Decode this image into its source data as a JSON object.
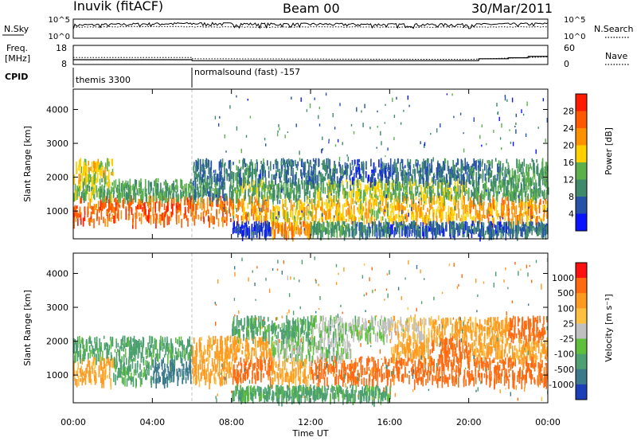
{
  "header": {
    "station": "Inuvik (fitACF)",
    "beam": "Beam 00",
    "date": "30/Mar/2011"
  },
  "top_panels": {
    "nsky_label": "N.Sky",
    "nsky_ticks": [
      "10^5",
      "10^0"
    ],
    "nsearch_label": "N.Search",
    "nsearch_ticks": [
      "10^5",
      "10^0"
    ],
    "freq_label_line1": "Freq.",
    "freq_label_line2": "[MHz]",
    "freq_ticks": [
      "18",
      "8"
    ],
    "nave_label": "Nave",
    "nave_ticks": [
      "60",
      "0"
    ],
    "cpid_label": "CPID",
    "cpid_segments": [
      {
        "label": "themis 3300",
        "start_hour": 0,
        "end_hour": 6
      },
      {
        "label": "normalsound (fast) -157",
        "start_hour": 6,
        "end_hour": 24
      }
    ]
  },
  "xaxis": {
    "label": "Time UT",
    "ticks": [
      "00:00",
      "04:00",
      "08:00",
      "12:00",
      "16:00",
      "20:00",
      "00:00"
    ]
  },
  "power_panel": {
    "ylabel": "Slant Range [km]",
    "yticks": [
      "1000",
      "2000",
      "3000",
      "4000"
    ],
    "colorbar_label": "Power [dB]",
    "colorbar_ticks": [
      "4",
      "8",
      "12",
      "16",
      "20",
      "24",
      "28"
    ],
    "colors": [
      "#0a14ff",
      "#2652a8",
      "#3f8a6a",
      "#5cb04c",
      "#ffd000",
      "#ff9000",
      "#ff5a00",
      "#ff1a00"
    ]
  },
  "velocity_panel": {
    "ylabel": "Slant Range [km]",
    "yticks": [
      "1000",
      "2000",
      "3000",
      "4000"
    ],
    "colorbar_label": "Velocity [m s⁻¹]",
    "colorbar_ticks": [
      "1000",
      "500",
      "100",
      "25",
      "-25",
      "-100",
      "-500",
      "-1000"
    ],
    "colors": [
      "#1a3fb8",
      "#3a7a8a",
      "#4da070",
      "#5ec03a",
      "#c0c0c0",
      "#ffc040",
      "#ff9a20",
      "#ff6a10",
      "#ff1010"
    ]
  },
  "chart_data": [
    {
      "type": "line",
      "title": "N.Sky / N.Search",
      "x_unit": "hour UT",
      "xlim": [
        0,
        24
      ],
      "series": [
        {
          "name": "N.Sky",
          "x": [
            0,
            2,
            4,
            6,
            8,
            10,
            12,
            14,
            16,
            18,
            20,
            22,
            24
          ],
          "y": [
            2000,
            3000,
            5000,
            6000,
            5000,
            4000,
            4000,
            3500,
            3000,
            3000,
            3000,
            4000,
            5000
          ]
        },
        {
          "name": "N.Search",
          "x": [
            0,
            2,
            4,
            6,
            8,
            10,
            12,
            14,
            16,
            18,
            20,
            22,
            24
          ],
          "y": [
            800,
            1000,
            1200,
            1000,
            900,
            800,
            900,
            900,
            800,
            800,
            800,
            900,
            1000
          ]
        }
      ]
    },
    {
      "type": "line",
      "title": "Freq. / Nave",
      "x_unit": "hour UT",
      "xlim": [
        0,
        24
      ],
      "series": [
        {
          "name": "Freq. [MHz]",
          "x": [
            0,
            6,
            6.01,
            20.5,
            20.51,
            22,
            22.01,
            23,
            23.01,
            24
          ],
          "y": [
            10.5,
            10.5,
            10.0,
            10.0,
            11.0,
            11.0,
            11.5,
            11.5,
            12.2,
            12.2
          ]
        },
        {
          "name": "Nave",
          "x": [
            0,
            6,
            6.01,
            20,
            22,
            24
          ],
          "y": [
            22,
            22,
            18,
            16,
            20,
            24
          ]
        }
      ]
    },
    {
      "type": "heatmap",
      "title": "Power [dB]",
      "xlabel": "Time UT",
      "ylabel": "Slant Range [km]",
      "xlim": [
        0,
        24
      ],
      "ylim": [
        180,
        4600
      ],
      "x_hours": [
        0,
        2,
        4,
        6,
        8,
        10,
        12,
        14,
        16,
        18,
        20,
        22
      ],
      "bands": [
        {
          "range_km": [
            700,
            1400
          ],
          "values_db": [
            28,
            28,
            28,
            27,
            24,
            20,
            22,
            20,
            22,
            22,
            24,
            24
          ]
        },
        {
          "range_km": [
            1400,
            1900
          ],
          "values_db": [
            16,
            14,
            14,
            12,
            16,
            14,
            16,
            18,
            16,
            16,
            14,
            14
          ]
        },
        {
          "range_km": [
            1900,
            2500
          ],
          "values_db": [
            20,
            0,
            0,
            10,
            12,
            10,
            10,
            8,
            10,
            10,
            12,
            14
          ]
        },
        {
          "range_km": [
            350,
            650
          ],
          "values_db": [
            0,
            0,
            0,
            0,
            6,
            24,
            14,
            10,
            8,
            8,
            8,
            10
          ]
        }
      ]
    },
    {
      "type": "heatmap",
      "title": "Velocity [m s⁻¹]",
      "xlabel": "Time UT",
      "ylabel": "Slant Range [km]",
      "xlim": [
        0,
        24
      ],
      "ylim": [
        180,
        4600
      ],
      "x_hours": [
        0,
        2,
        4,
        6,
        8,
        10,
        12,
        14,
        16,
        18,
        20,
        22
      ],
      "bands": [
        {
          "range_km": [
            800,
            1500
          ],
          "values_ms": [
            -100,
            100,
            500,
            -100,
            -500,
            -100,
            -500,
            -500,
            -500,
            -500,
            -500,
            -500
          ]
        },
        {
          "range_km": [
            1500,
            2100
          ],
          "values_ms": [
            100,
            100,
            100,
            -100,
            -100,
            25,
            25,
            0,
            -100,
            -500,
            -100,
            -100
          ]
        },
        {
          "range_km": [
            2100,
            2700
          ],
          "values_ms": [
            0,
            0,
            0,
            0,
            100,
            100,
            25,
            25,
            -25,
            -100,
            -100,
            -500
          ]
        },
        {
          "range_km": [
            300,
            650
          ],
          "values_ms": [
            0,
            0,
            0,
            0,
            100,
            100,
            100,
            100,
            0,
            0,
            0,
            0
          ]
        }
      ]
    }
  ]
}
